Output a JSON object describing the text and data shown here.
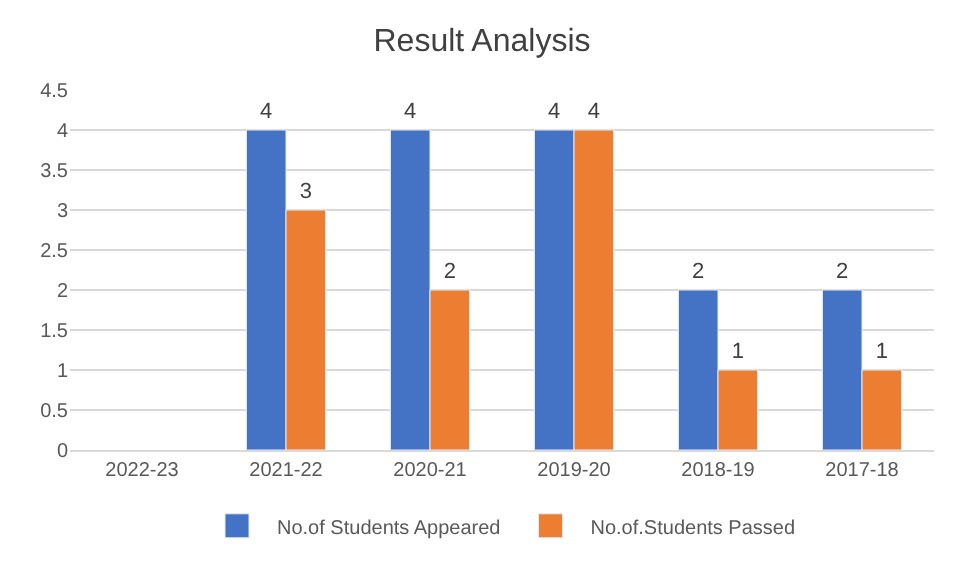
{
  "chart_data": {
    "type": "bar",
    "title": "Result Analysis",
    "categories": [
      "2022-23",
      "2021-22",
      "2020-21",
      "2019-20",
      "2018-19",
      "2017-18"
    ],
    "series": [
      {
        "name": "No.of Students Appeared",
        "color": "#4472c4",
        "values": [
          null,
          4,
          4,
          4,
          2,
          2
        ]
      },
      {
        "name": "No.of.Students Passed",
        "color": "#ed7d31",
        "values": [
          null,
          3,
          2,
          4,
          1,
          1
        ]
      }
    ],
    "ylim": [
      0,
      4.5
    ],
    "yticks": [
      0,
      0.5,
      1,
      1.5,
      2,
      2.5,
      3,
      3.5,
      4,
      4.5
    ],
    "grid": "y",
    "legend": "bottom",
    "data_labels": true
  }
}
